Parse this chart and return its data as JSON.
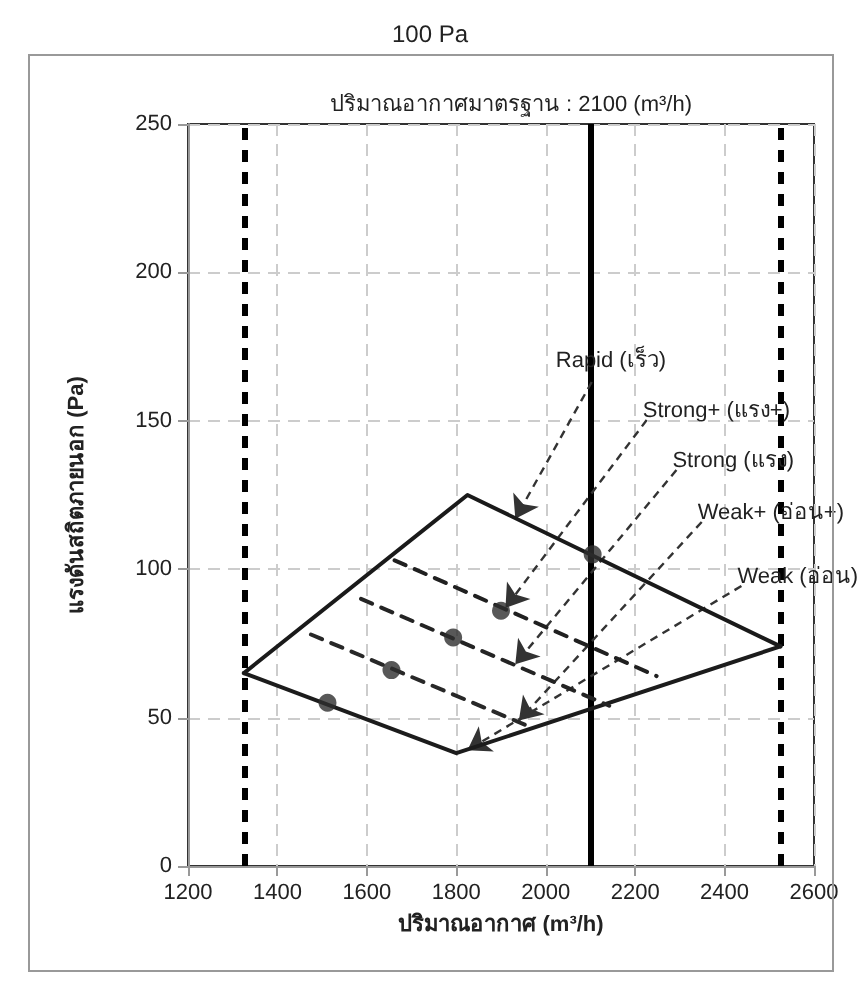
{
  "chart_data": {
    "type": "line",
    "title": "100 Pa",
    "subtitle": "ปริมาณอากาศมาตรฐาน : 2100 (m³/h)",
    "xlabel": "ปริมาณอากาศ (m³/h)",
    "ylabel": "แรงดันสถิตภายนอก (Pa)",
    "xlim": [
      1200,
      2600
    ],
    "xticks": [
      1200,
      1400,
      1600,
      1800,
      2000,
      2200,
      2400,
      2600
    ],
    "ylim": [
      0,
      250
    ],
    "yticks": [
      0,
      50,
      100,
      150,
      200,
      250
    ],
    "grid": true,
    "series": [
      {
        "color": "#1a1a1a",
        "line_style": "solid",
        "marker": "none",
        "x": [
          1325,
          1825,
          2525
        ],
        "values": [
          65,
          125,
          74
        ]
      },
      {
        "color": "#1c1c1c",
        "line_style": "solid",
        "marker": "none",
        "x": [
          1325,
          1800,
          2525
        ],
        "values": [
          65,
          38,
          74
        ]
      },
      {
        "color": "#202020",
        "line_style": "dashed",
        "marker": "none",
        "x": [
          1662,
          2248
        ],
        "values": [
          103,
          64
        ]
      },
      {
        "color": "#242424",
        "line_style": "dashed",
        "marker": "none",
        "x": [
          1587,
          2142
        ],
        "values": [
          90,
          54
        ]
      },
      {
        "color": "#282828",
        "line_style": "dashed",
        "marker": "none",
        "x": [
          1475,
          1963
        ],
        "values": [
          78,
          47
        ]
      },
      {
        "type": "scatter",
        "color": "#2e2e2e",
        "marker": "circle",
        "x": [
          1512,
          1655,
          1793,
          1900,
          2105
        ],
        "values": [
          55,
          66,
          77,
          86,
          105
        ]
      }
    ],
    "ref_lines": [
      {
        "axis": "x",
        "value": 1325,
        "line_style": "dashed",
        "color": "#000000"
      },
      {
        "axis": "x",
        "value": 2525,
        "line_style": "dashed",
        "color": "#000000"
      },
      {
        "axis": "x",
        "value": 2100,
        "line_style": "solid",
        "color": "#000000"
      }
    ],
    "annotations": [
      {
        "text": "Rapid (เร็ว)",
        "x": 1932,
        "y": 117
      },
      {
        "text": "Strong+ (แรง+)",
        "x": 1910,
        "y": 87
      },
      {
        "text": "Strong (แรง)",
        "x": 1932,
        "y": 68
      },
      {
        "text": "Weak+ (อ่อน+)",
        "x": 1940,
        "y": 49
      },
      {
        "text": "Weak (อ่อน)",
        "x": 1825,
        "y": 39
      }
    ]
  }
}
